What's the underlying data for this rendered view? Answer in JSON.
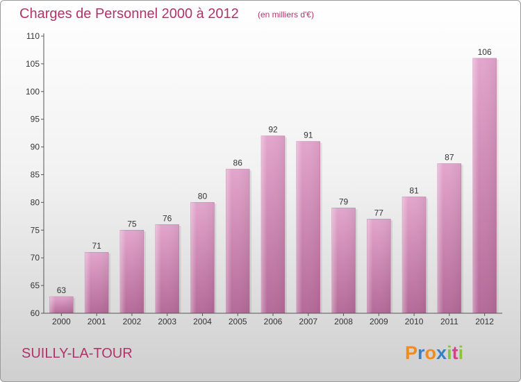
{
  "chart_data": {
    "type": "bar",
    "title": "Charges de Personnel 2000 à 2012",
    "subtitle": "(en milliers d'€)",
    "categories": [
      "2000",
      "2001",
      "2002",
      "2003",
      "2004",
      "2005",
      "2006",
      "2007",
      "2008",
      "2009",
      "2010",
      "2011",
      "2012"
    ],
    "values": [
      63,
      71,
      75,
      76,
      80,
      86,
      92,
      91,
      79,
      77,
      81,
      87,
      106
    ],
    "xlabel": "",
    "ylabel": "",
    "ylim": [
      60,
      110
    ],
    "yticks": [
      60,
      65,
      70,
      75,
      80,
      85,
      90,
      95,
      100,
      105,
      110
    ],
    "grid": false,
    "bar_color": "#d98cb8"
  },
  "location": "SUILLY-LA-TOUR",
  "brand": {
    "name": "Proxiti",
    "letters": [
      "P",
      "r",
      "o",
      "x",
      "i",
      "t",
      "i"
    ],
    "colors": [
      "#f08c1a",
      "#3a7fc4",
      "#f08c1a",
      "#3a7fc4",
      "#8cc23c",
      "#e03c8c",
      "#8cc23c"
    ]
  }
}
